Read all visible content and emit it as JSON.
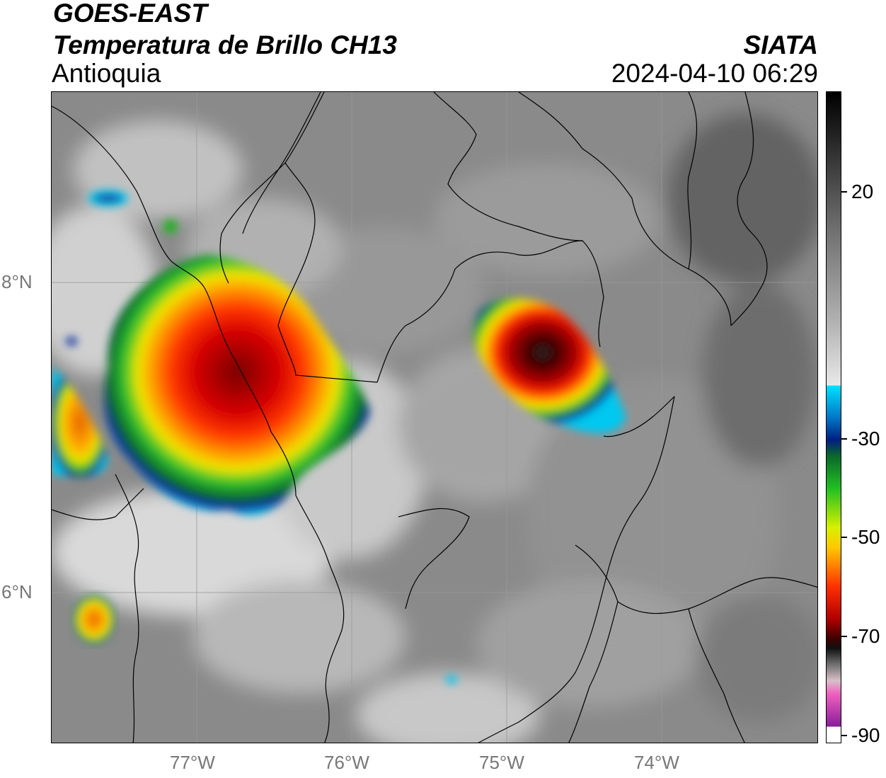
{
  "header": {
    "title": "GOES-EAST",
    "product": "Temperatura de Brillo CH13",
    "region": "Antioquia",
    "brand": "SIATA",
    "datetime": "2024-04-10 06:29"
  },
  "map": {
    "lat_labels": [
      "8°N",
      "6°N"
    ],
    "lon_labels": [
      "77°W",
      "76°W",
      "75°W",
      "74°W"
    ],
    "gridlines": true,
    "basemap": "grayscale infrared brightness temperature with colored cold cloud tops",
    "colors": {
      "background_gray": "#8a8a8a",
      "cold_core": "#6b0000",
      "red": "#e80000",
      "orange": "#ff8a00",
      "yellow": "#f2e600",
      "green": "#1fb81f",
      "blue": "#003a9c",
      "cyan": "#00c8f0",
      "boundary": "#000000"
    }
  },
  "colorbar": {
    "tick_labels": [
      "20",
      "-30",
      "-50",
      "-70",
      "-90"
    ],
    "tick_values": [
      20,
      -30,
      -50,
      -70,
      -90
    ],
    "range": [
      -90,
      40
    ]
  }
}
